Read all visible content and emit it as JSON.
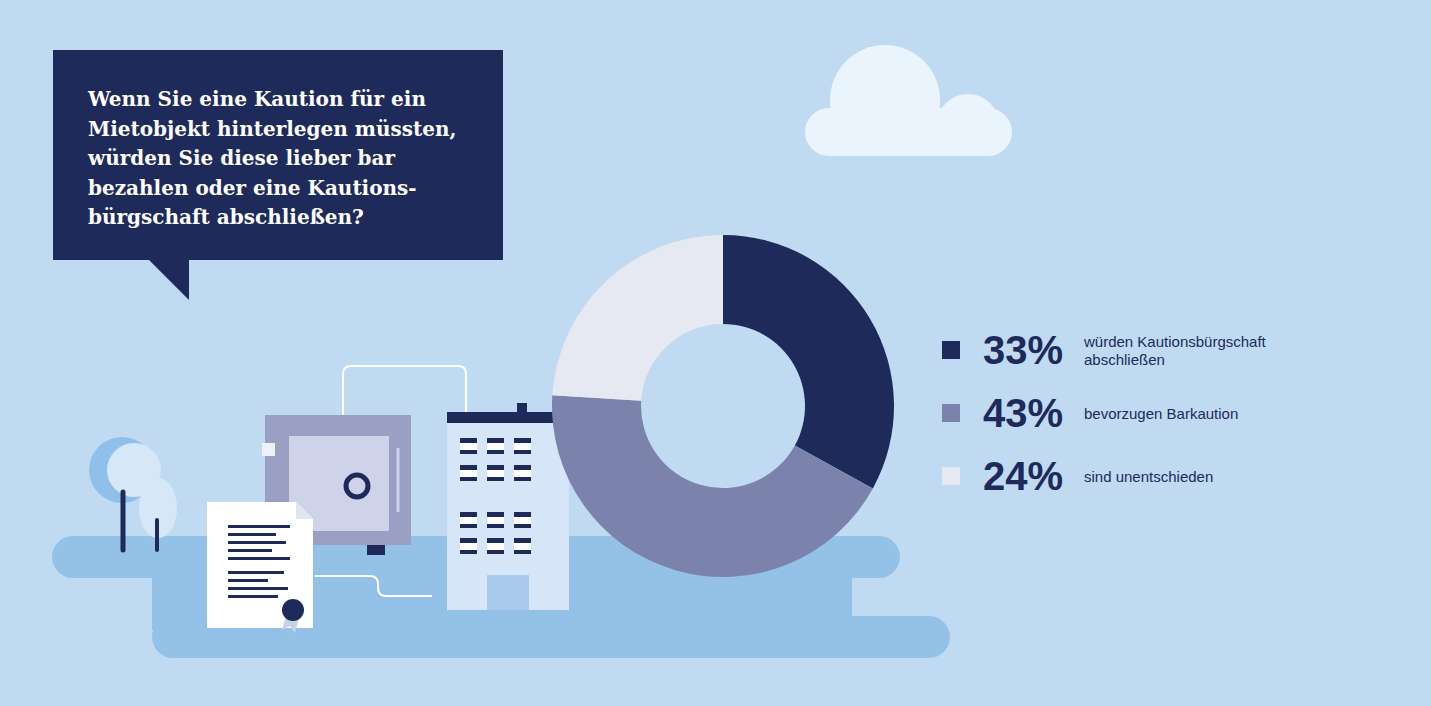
{
  "chart_data": {
    "type": "donut",
    "title": "Wenn Sie eine Kaution für ein\nMietobjekt hinterlegen müssten,\nwürden Sie diese lieber bar\nbezahlen oder eine Kautions-\nbürgschaft abschließen?",
    "categories": [
      "würden Kautionsbürgschaft abschließen",
      "bevorzugen Barkaution",
      "sind unentschieden"
    ],
    "values": [
      33,
      43,
      24
    ],
    "value_labels": [
      "33%",
      "43%",
      "24%"
    ],
    "colors": [
      "#1e2a5a",
      "#7b83ad",
      "#e6e8f2"
    ],
    "legend": "right"
  }
}
